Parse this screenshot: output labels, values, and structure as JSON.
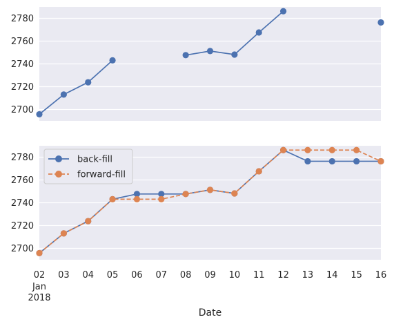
{
  "chart_data": [
    {
      "type": "line",
      "x": [
        "2018-01-02",
        "2018-01-03",
        "2018-01-04",
        "2018-01-05",
        "2018-01-06",
        "2018-01-07",
        "2018-01-08",
        "2018-01-09",
        "2018-01-10",
        "2018-01-11",
        "2018-01-12",
        "2018-01-13",
        "2018-01-14",
        "2018-01-15",
        "2018-01-16"
      ],
      "series": [
        {
          "values": [
            2695.8,
            2713.1,
            2723.9,
            2743.1,
            null,
            null,
            2747.7,
            2751.3,
            2748.2,
            2767.6,
            2786.2,
            null,
            null,
            null,
            2776.4
          ],
          "color": "#4C72B0",
          "marker": "circle",
          "linestyle": "solid"
        }
      ],
      "ylim": [
        2690,
        2790
      ],
      "yticks": [
        2700,
        2720,
        2740,
        2760,
        2780
      ],
      "grid": true,
      "background": "#EAEAF2"
    },
    {
      "type": "line",
      "x": [
        "2018-01-02",
        "2018-01-03",
        "2018-01-04",
        "2018-01-05",
        "2018-01-06",
        "2018-01-07",
        "2018-01-08",
        "2018-01-09",
        "2018-01-10",
        "2018-01-11",
        "2018-01-12",
        "2018-01-13",
        "2018-01-14",
        "2018-01-15",
        "2018-01-16"
      ],
      "series": [
        {
          "name": "back-fill",
          "values": [
            2695.8,
            2713.1,
            2723.9,
            2743.1,
            2747.7,
            2747.7,
            2747.7,
            2751.3,
            2748.2,
            2767.6,
            2786.2,
            2776.4,
            2776.4,
            2776.4,
            2776.4
          ],
          "color": "#4C72B0",
          "marker": "circle",
          "linestyle": "solid"
        },
        {
          "name": "forward-fill",
          "values": [
            2695.8,
            2713.1,
            2723.9,
            2743.1,
            2743.1,
            2743.1,
            2747.7,
            2751.3,
            2748.2,
            2767.6,
            2786.2,
            2786.2,
            2786.2,
            2786.2,
            2776.4
          ],
          "color": "#DD8452",
          "marker": "circle",
          "linestyle": "dashed"
        }
      ],
      "ylim": [
        2690,
        2790
      ],
      "yticks": [
        2700,
        2720,
        2740,
        2760,
        2780
      ],
      "xticklabels": [
        "02",
        "03",
        "04",
        "05",
        "06",
        "07",
        "08",
        "09",
        "10",
        "11",
        "12",
        "13",
        "14",
        "15",
        "16"
      ],
      "first_tick_sublabels": [
        "Jan",
        "2018"
      ],
      "xlabel": "Date",
      "legend": "top-left",
      "grid": true,
      "background": "#EAEAF2"
    }
  ]
}
